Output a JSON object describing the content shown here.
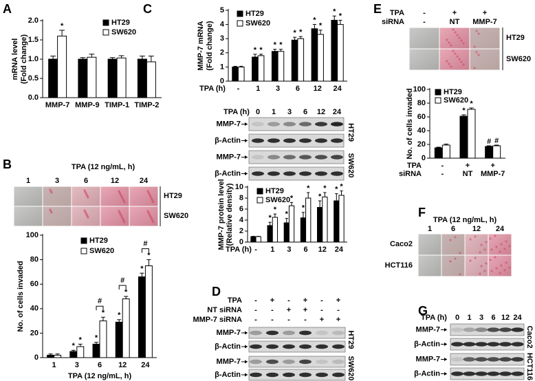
{
  "panel_labels": [
    "A",
    "B",
    "C",
    "D",
    "E",
    "F",
    "G"
  ],
  "chart_data": [
    {
      "type": "bar",
      "y_label": [
        "mRNA level",
        "(Fold change)"
      ],
      "categories": [
        "MMP-7",
        "MMP-9",
        "TIMP-1",
        "TIMP-2"
      ],
      "series": [
        {
          "name": "HT29",
          "color": "#000000",
          "values": [
            1.0,
            1.0,
            1.0,
            1.0
          ],
          "errors": [
            0.08,
            0.04,
            0.04,
            0.08
          ],
          "stars": [
            null,
            null,
            null,
            null
          ]
        },
        {
          "name": "SW620",
          "color": "#ffffff",
          "values": [
            1.6,
            1.05,
            1.03,
            0.93
          ],
          "errors": [
            0.15,
            0.08,
            0.06,
            0.15
          ],
          "stars": [
            "*",
            null,
            null,
            null
          ]
        }
      ],
      "ylim": [
        0,
        2
      ],
      "yticks": [
        {
          "value": 0,
          "label": "0.0"
        },
        0.5,
        {
          "value": 1,
          "label": "1.0"
        },
        1.5,
        {
          "value": 2,
          "label": "2.0"
        }
      ],
      "legend": "upper right"
    },
    {
      "type": "bar",
      "y_label": [
        "No. of cells invaded"
      ],
      "x_label": "TPA (12 ng/mL, h)",
      "categories": [
        "1",
        "3",
        "6",
        "12",
        "24"
      ],
      "series": [
        {
          "name": "HT29",
          "color": "#000000",
          "values": [
            2,
            5,
            11,
            29,
            66
          ],
          "errors": [
            1,
            1,
            1.5,
            2,
            3
          ],
          "stars": [
            null,
            "*",
            "*",
            "*",
            "*"
          ]
        },
        {
          "name": "SW620",
          "color": "#ffffff",
          "values": [
            2,
            9,
            30,
            48,
            75
          ],
          "errors": [
            1,
            2,
            3,
            2,
            5
          ],
          "stars": [
            null,
            "*",
            "*",
            "*",
            "*"
          ]
        }
      ],
      "pair_marks": [
        null,
        null,
        "#",
        "#",
        "#"
      ],
      "ylim": [
        0,
        100
      ],
      "yticks": [
        0,
        20,
        40,
        60,
        80,
        100
      ],
      "legend": "upper left"
    },
    {
      "type": "bar",
      "y_label": [
        "MMP-7 mRNA",
        "(Fold change)"
      ],
      "x_label": "TPA (h)",
      "categories": [
        "-",
        "1",
        "3",
        "6",
        "12",
        "24"
      ],
      "series": [
        {
          "name": "HT29",
          "color": "#000000",
          "values": [
            1,
            1.7,
            2.1,
            2.9,
            3.7,
            4.3
          ],
          "errors": [
            0.05,
            0.2,
            0.15,
            0.2,
            0.3,
            0.3
          ],
          "stars": [
            null,
            "*",
            "*",
            "*",
            "*",
            "*"
          ]
        },
        {
          "name": "SW620",
          "color": "#ffffff",
          "values": [
            1,
            1.8,
            2.1,
            3.0,
            3.3,
            4.0
          ],
          "errors": [
            0.05,
            0.1,
            0.15,
            0.15,
            0.3,
            0.3
          ],
          "stars": [
            null,
            "*",
            "*",
            "*",
            "*",
            "*"
          ]
        }
      ],
      "ylim": [
        0,
        5
      ],
      "yticks": [
        0,
        1,
        2,
        3,
        4,
        5
      ],
      "legend": "upper left"
    },
    {
      "type": "bar",
      "y_label": [
        "MMP-7 protein level",
        "(Relative density)"
      ],
      "x_label": "TPA (h)",
      "categories": [
        "-",
        "1",
        "3",
        "6",
        "12",
        "24"
      ],
      "series": [
        {
          "name": "HT29",
          "color": "#000000",
          "values": [
            1,
            3,
            3.5,
            4.4,
            6.3,
            7.5
          ],
          "errors": [
            0.05,
            0.6,
            0.8,
            1.0,
            1.2,
            1.3
          ],
          "stars": [
            null,
            "*",
            "*",
            "*",
            "*",
            "*"
          ]
        },
        {
          "name": "SW620",
          "color": "#ffffff",
          "values": [
            1,
            4.5,
            6.6,
            8,
            8.2,
            8.5
          ],
          "errors": [
            0.05,
            0.6,
            0.6,
            1.0,
            0.8,
            0.8
          ],
          "stars": [
            null,
            "*",
            "*",
            "*",
            "*",
            "*"
          ]
        }
      ],
      "ylim": [
        0,
        10
      ],
      "yticks": [
        0,
        2,
        4,
        6,
        8,
        10
      ],
      "legend": "upper left"
    },
    {
      "type": "bar",
      "y_label": [
        "No. of cells invaded"
      ],
      "category_rows": [
        "TPA",
        "siRNA"
      ],
      "categories": [
        [
          "-",
          "-"
        ],
        [
          "+",
          "NT"
        ],
        [
          "+",
          "MMP-7"
        ]
      ],
      "series": [
        {
          "name": "HT29",
          "color": "#000000",
          "values": [
            15,
            61,
            17
          ],
          "errors": [
            1,
            2,
            1
          ],
          "stars": [
            null,
            "*",
            "#"
          ]
        },
        {
          "name": "SW620",
          "color": "#ffffff",
          "values": [
            19,
            71,
            18
          ],
          "errors": [
            1.5,
            2,
            1
          ],
          "stars": [
            null,
            "*",
            "#"
          ]
        }
      ],
      "ylim": [
        0,
        100
      ],
      "yticks": [
        0,
        20,
        40,
        60,
        80,
        100
      ],
      "legend": "upper left"
    }
  ],
  "images_B": {
    "title": "TPA (12 ng/mL, h)",
    "columns": [
      "1",
      "3",
      "6",
      "12",
      "24"
    ],
    "rows": [
      "HT29",
      "SW620"
    ]
  },
  "blot_C": {
    "title": "TPA (h)",
    "columns": [
      "0",
      "1",
      "3",
      "6",
      "12",
      "24"
    ],
    "groups": [
      {
        "name": "HT29",
        "rows": [
          "MMP-7",
          "β-Actin"
        ]
      },
      {
        "name": "SW620",
        "rows": [
          "MMP-7",
          "β-Actin"
        ]
      }
    ]
  },
  "blot_D": {
    "conditions": [
      {
        "label": "TPA",
        "values": [
          "-",
          "+",
          "-",
          "+",
          "-",
          "+"
        ]
      },
      {
        "label": "NT siRNA",
        "values": [
          "-",
          "-",
          "+",
          "+",
          "-",
          "-"
        ]
      },
      {
        "label": "MMP-7 siRNA",
        "values": [
          "-",
          "-",
          "-",
          "-",
          "+",
          "+"
        ]
      }
    ],
    "groups": [
      {
        "name": "HT29",
        "rows": [
          "MMP-7",
          "β-Actin"
        ]
      },
      {
        "name": "SW620",
        "rows": [
          "MMP-7",
          "β-Actin"
        ]
      }
    ]
  },
  "images_E": {
    "conditions": [
      {
        "label": "TPA",
        "values": [
          "-",
          "+",
          "+"
        ]
      },
      {
        "label": "siRNA",
        "values": [
          "-",
          "NT",
          "MMP-7"
        ]
      }
    ],
    "rows": [
      "HT29",
      "SW620"
    ]
  },
  "images_F": {
    "title": "TPA (12 ng/mL, h)",
    "columns": [
      "1",
      "6",
      "12",
      "24"
    ],
    "rows": [
      "Caco2",
      "HCT116"
    ]
  },
  "blot_G": {
    "title": "TPA (h)",
    "columns": [
      "0",
      "1",
      "3",
      "6",
      "12",
      "24"
    ],
    "groups": [
      {
        "name": "Caco2",
        "rows": [
          "MMP-7",
          "β-Actin"
        ]
      },
      {
        "name": "HCT116",
        "rows": [
          "MMP-7",
          "β-Actin"
        ]
      }
    ]
  }
}
